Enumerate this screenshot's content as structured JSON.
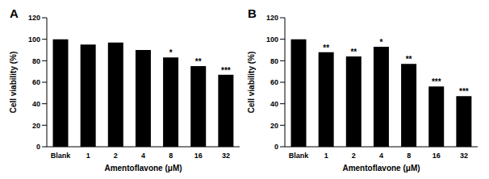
{
  "chart_data": [
    {
      "type": "bar",
      "title": "A",
      "x_label": "Amentoflavone (μM)",
      "y_label": "Cell viability (%)",
      "categories": [
        "Blank",
        "1",
        "2",
        "4",
        "8",
        "16",
        "32"
      ],
      "values": [
        100,
        95,
        97,
        90,
        83,
        75,
        67
      ],
      "annotations": [
        null,
        null,
        null,
        null,
        "*",
        "**",
        "***"
      ],
      "color": "#000000",
      "ylim": [
        0,
        120
      ],
      "yticks": [
        0,
        20,
        40,
        60,
        80,
        100,
        120
      ],
      "grid": false
    },
    {
      "type": "bar",
      "title": "B",
      "x_label": "Amentoflavone (μM)",
      "y_label": "Cell viability (%)",
      "categories": [
        "Blank",
        "1",
        "2",
        "4",
        "8",
        "16",
        "32"
      ],
      "values": [
        100,
        88,
        84,
        93,
        77,
        56,
        47
      ],
      "annotations": [
        null,
        "**",
        "**",
        "*",
        "**",
        "***",
        "***"
      ],
      "color": "#000000",
      "ylim": [
        0,
        120
      ],
      "yticks": [
        0,
        20,
        40,
        60,
        80,
        100,
        120
      ],
      "grid": false
    }
  ]
}
